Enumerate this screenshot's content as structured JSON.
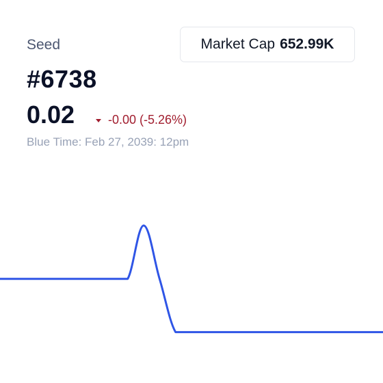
{
  "header": {
    "label": "Seed",
    "token_id": "#6738",
    "market_cap_label": "Market Cap",
    "market_cap_value": "652.99K"
  },
  "price": {
    "value": "0.02",
    "change": "-0.00 (-5.26%)",
    "direction_icon": "caret-down-icon",
    "timestamp": "Blue Time: Feb 27, 2039: 12pm"
  },
  "colors": {
    "line": "#2f55e6",
    "negative": "#a11d2e",
    "muted": "#98a2b6"
  },
  "chart_data": {
    "type": "line",
    "title": "",
    "xlabel": "",
    "ylabel": "",
    "grid": false,
    "legend": "none",
    "x": [
      0,
      1,
      2,
      3,
      4,
      5,
      6,
      7,
      8,
      9,
      10,
      11,
      12,
      13,
      14,
      15,
      16,
      17,
      18,
      19,
      20,
      21,
      22,
      23,
      24
    ],
    "series": [
      {
        "values": [
          0.0196,
          0.0196,
          0.0196,
          0.0196,
          0.0196,
          0.0196,
          0.0196,
          0.0196,
          0.0196,
          0.0212,
          0.0196,
          0.018,
          0.018,
          0.018,
          0.018,
          0.018,
          0.018,
          0.018,
          0.018,
          0.018,
          0.018,
          0.018,
          0.018,
          0.018,
          0.018
        ]
      }
    ],
    "xlim": [
      0,
      24
    ],
    "ylim": [
      0.0175,
      0.0214
    ]
  }
}
